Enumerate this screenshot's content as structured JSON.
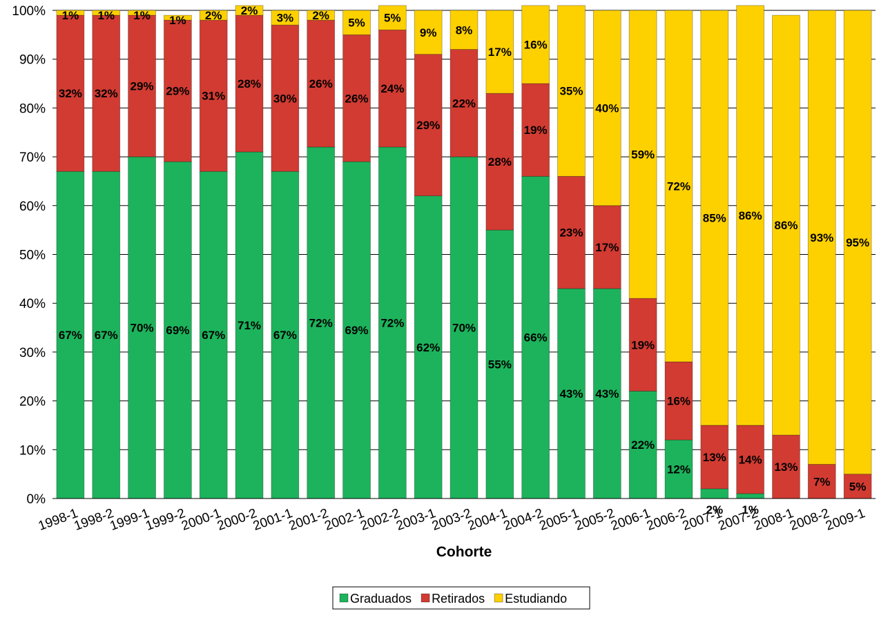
{
  "chart_data": {
    "type": "bar",
    "stacked": true,
    "percent_stacked": true,
    "title": "",
    "xlabel": "Cohorte",
    "ylabel": "",
    "ylim": [
      0,
      100
    ],
    "y_ticks": [
      "0%",
      "10%",
      "20%",
      "30%",
      "40%",
      "50%",
      "60%",
      "70%",
      "80%",
      "90%",
      "100%"
    ],
    "grid": true,
    "legend_position": "bottom",
    "categories": [
      "1998-1",
      "1998-2",
      "1999-1",
      "1999-2",
      "2000-1",
      "2000-2",
      "2001-1",
      "2001-2",
      "2002-1",
      "2002-2",
      "2003-1",
      "2003-2",
      "2004-1",
      "2004-2",
      "2005-1",
      "2005-2",
      "2006-1",
      "2006-2",
      "2007-1",
      "2007-2",
      "2008-1",
      "2008-2",
      "2009-1"
    ],
    "series": [
      {
        "name": "Graduados",
        "color": "#1db35c",
        "values": [
          67,
          67,
          70,
          69,
          67,
          71,
          67,
          72,
          69,
          72,
          62,
          70,
          55,
          66,
          43,
          43,
          22,
          12,
          2,
          1,
          0,
          0,
          0
        ],
        "labels": [
          "67%",
          "67%",
          "70%",
          "69%",
          "67%",
          "71%",
          "67%",
          "72%",
          "69%",
          "72%",
          "62%",
          "70%",
          "55%",
          "66%",
          "43%",
          "43%",
          "22%",
          "12%",
          "2%",
          "1%",
          "",
          "",
          ""
        ]
      },
      {
        "name": "Retirados",
        "color": "#d13b32",
        "values": [
          32,
          32,
          29,
          29,
          31,
          28,
          30,
          26,
          26,
          24,
          29,
          22,
          28,
          19,
          23,
          17,
          19,
          16,
          13,
          14,
          13,
          7,
          5
        ],
        "labels": [
          "32%",
          "32%",
          "29%",
          "29%",
          "31%",
          "28%",
          "30%",
          "26%",
          "26%",
          "24%",
          "29%",
          "22%",
          "28%",
          "19%",
          "23%",
          "17%",
          "19%",
          "16%",
          "13%",
          "14%",
          "13%",
          "7%",
          "5%"
        ]
      },
      {
        "name": "Estudiando",
        "color": "#fdd000",
        "values": [
          1,
          1,
          1,
          1,
          2,
          2,
          3,
          2,
          5,
          5,
          9,
          8,
          17,
          16,
          35,
          40,
          59,
          72,
          85,
          86,
          86,
          93,
          95
        ],
        "labels": [
          "1%",
          "1%",
          "1%",
          "1%",
          "2%",
          "2%",
          "3%",
          "2%",
          "5%",
          "5%",
          "9%",
          "8%",
          "17%",
          "16%",
          "35%",
          "40%",
          "59%",
          "72%",
          "85%",
          "86%",
          "86%",
          "93%",
          "95%"
        ]
      }
    ]
  }
}
